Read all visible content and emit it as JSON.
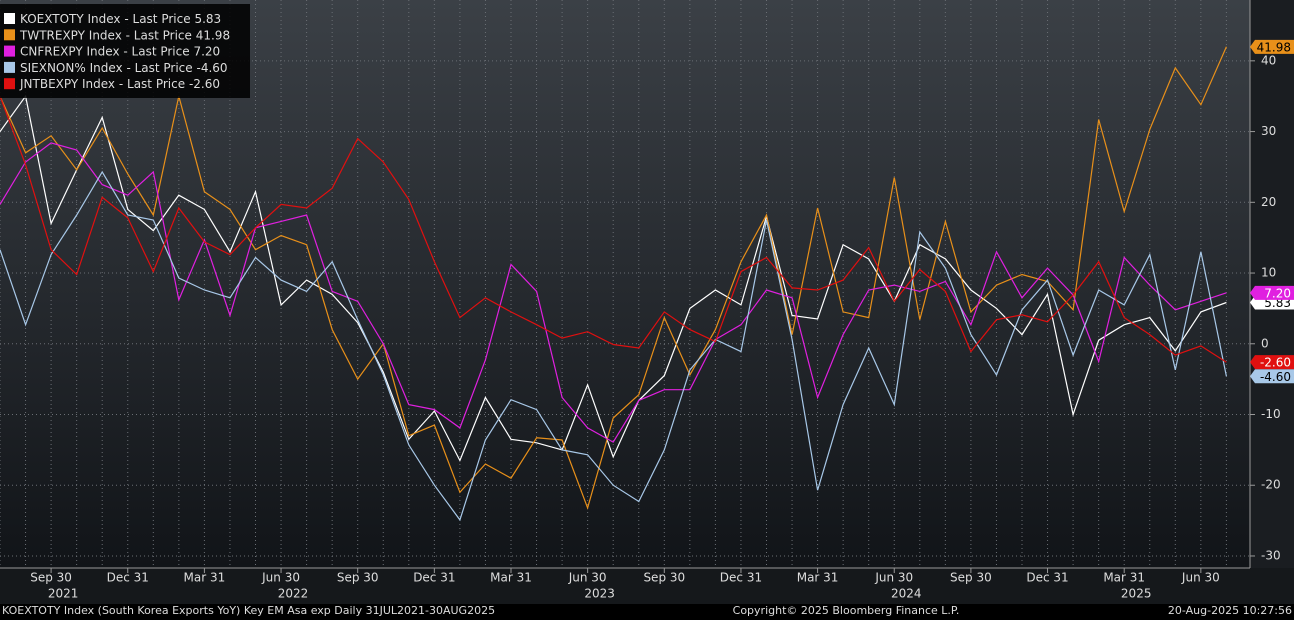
{
  "chart_data": {
    "type": "line",
    "legend_field": "- Last Price",
    "categories": [
      null,
      null,
      "Sep 30",
      null,
      null,
      "Dec 31",
      null,
      null,
      "Mar 31",
      null,
      null,
      "Jun 30",
      null,
      null,
      "Sep 30",
      null,
      null,
      "Dec 31",
      null,
      null,
      "Mar 31",
      null,
      null,
      "Jun 30",
      null,
      null,
      "Sep 30",
      null,
      null,
      "Dec 31",
      null,
      null,
      "Mar 31",
      null,
      null,
      "Jun 30",
      null,
      null,
      "Sep 30",
      null,
      null,
      "Dec 31",
      null,
      null,
      "Mar 31",
      null,
      null,
      "Jun 30",
      null
    ],
    "year_categories": [
      null,
      null,
      "2021",
      null,
      null,
      null,
      null,
      null,
      null,
      null,
      null,
      "2022",
      null,
      null,
      null,
      null,
      null,
      null,
      null,
      null,
      null,
      null,
      null,
      "2023",
      null,
      null,
      null,
      null,
      null,
      null,
      null,
      null,
      null,
      null,
      null,
      "2024",
      null,
      null,
      null,
      null,
      null,
      null,
      null,
      null,
      "2025",
      null,
      null,
      null,
      null
    ],
    "series": [
      {
        "name": "KOEXTOTY Index",
        "color": "#ffffff",
        "last_price_label": "5.83",
        "values": [
          30,
          35,
          17,
          24.6,
          32,
          19,
          16,
          21,
          19,
          13,
          21.5,
          5.5,
          9,
          7,
          3,
          -4,
          -13.5,
          -9.5,
          -16.5,
          -7.6,
          -13.5,
          -14,
          -15,
          -5.8,
          -16,
          -8,
          -4.5,
          5,
          7.6,
          5.5,
          18,
          4,
          3.5,
          14,
          12,
          6,
          14,
          12,
          7.6,
          5,
          1.3,
          7,
          -10,
          0.5,
          2.7,
          3.7,
          -1,
          4.5,
          5.83
        ]
      },
      {
        "name": "TWTREXPY Index",
        "color": "#e8901a",
        "last_price_label": "41.98",
        "values": [
          35,
          27,
          29.4,
          24.6,
          30.5,
          24,
          18.2,
          35,
          21.5,
          19,
          13.3,
          15.3,
          14,
          2,
          -5,
          0,
          -13,
          -11.5,
          -21,
          -17,
          -19,
          -13.3,
          -13.6,
          -23.2,
          -10.5,
          -7.2,
          3.7,
          -4.4,
          2,
          11.6,
          18.2,
          1.3,
          19.2,
          4.5,
          3.7,
          23.5,
          3.4,
          17.3,
          4.5,
          8.3,
          9.8,
          8.8,
          4.8,
          31.7,
          18.7,
          30.3,
          39,
          33.8,
          41.98
        ]
      },
      {
        "name": "CNFREXPY Index",
        "color": "#e020e0",
        "last_price_label": "7.20",
        "values": [
          19.7,
          25.7,
          28.4,
          27.4,
          22.5,
          21,
          24.3,
          6.2,
          14.7,
          4,
          16.4,
          17.3,
          18.2,
          7.4,
          6,
          0,
          -8.6,
          -9.3,
          -11.9,
          -2.3,
          11.2,
          7.4,
          -7.6,
          -11.9,
          -13.9,
          -8,
          -6.5,
          -6.5,
          0.6,
          2.7,
          7.6,
          6.5,
          -7.6,
          1.3,
          7.6,
          8.3,
          7.4,
          8.8,
          2.7,
          13,
          6.5,
          10.7,
          6.9,
          -2.5,
          12.2,
          8.3,
          4.8,
          6,
          7.2
        ]
      },
      {
        "name": "SIEXNON% Index",
        "color": "#a8c8e8",
        "last_price_label": "-4.60",
        "values": [
          13.3,
          2.7,
          12.6,
          18.2,
          24.3,
          18.2,
          17.5,
          9.3,
          7.6,
          6.5,
          12.2,
          9,
          7.4,
          11.6,
          3.4,
          -4.4,
          -14.3,
          -20,
          -24.9,
          -13.6,
          -7.9,
          -9.3,
          -15,
          -15.7,
          -20,
          -22.3,
          -15,
          -3.7,
          0.6,
          -1.1,
          17.5,
          0.6,
          -20.7,
          -8.6,
          -0.6,
          -8.6,
          15.8,
          10.7,
          1.3,
          -4.4,
          4.8,
          9,
          -1.6,
          7.6,
          5.5,
          12.6,
          -3.7,
          13,
          -4.6
        ]
      },
      {
        "name": "JNTBEXPY Index",
        "color": "#e01010",
        "last_price_label": "-2.60",
        "values": [
          35,
          25.3,
          13.3,
          9.8,
          20.7,
          17.8,
          10.2,
          19.2,
          14.4,
          12.6,
          16.4,
          19.7,
          19.2,
          22,
          29,
          25.7,
          20.4,
          11.6,
          3.7,
          6.5,
          4.5,
          2.7,
          0.8,
          1.7,
          -0.1,
          -0.6,
          4.5,
          2,
          0.3,
          10.2,
          12.2,
          7.9,
          7.6,
          9,
          13.6,
          6,
          10.5,
          7.4,
          -1.1,
          3.4,
          4.1,
          3.1,
          6.9,
          11.6,
          3.7,
          1.3,
          -1.6,
          -0.3,
          -2.6
        ]
      }
    ],
    "ylim": [
      -31.7,
      48.6
    ],
    "yticks": [
      -30,
      -20,
      -10,
      0,
      10,
      20,
      30,
      40
    ],
    "grid": true,
    "footer_left": "KOEXTOTY Index (South Korea Exports YoY) Key EM Asa exp  Daily 31JUL2021-30AUG2025",
    "footer_center": "Copyright© 2025 Bloomberg Finance L.P.",
    "footer_right": "20-Aug-2025 10:27:56"
  }
}
